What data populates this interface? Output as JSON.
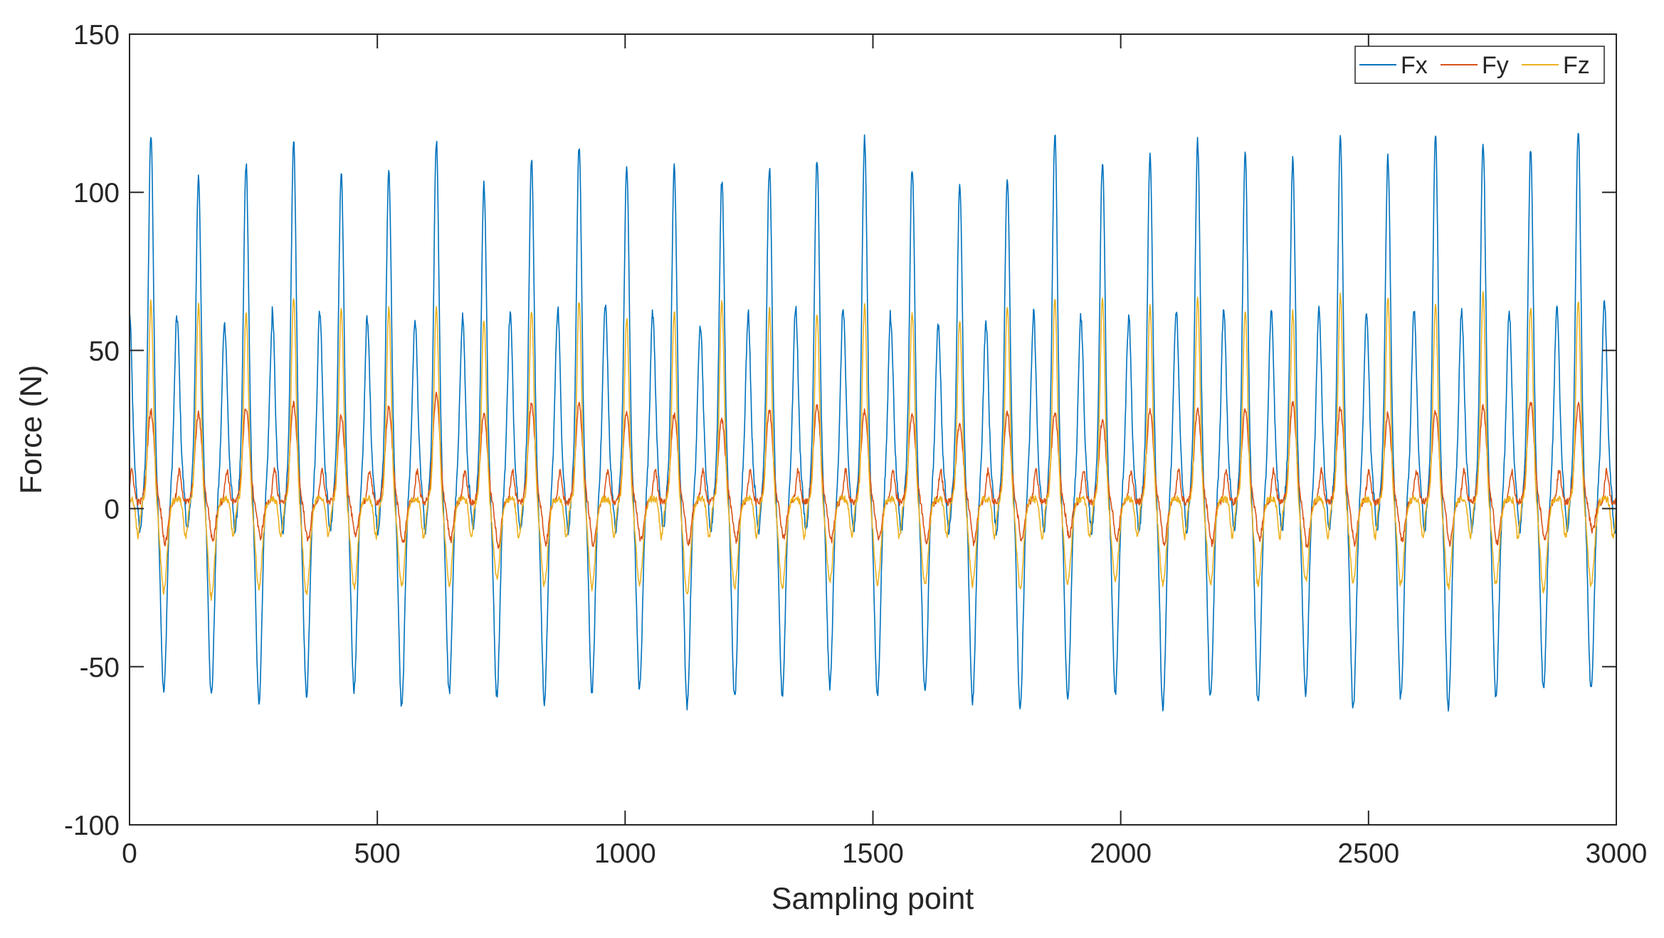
{
  "chart_data": {
    "type": "line",
    "title": "",
    "xlabel": "Sampling point",
    "ylabel": "Force (N)",
    "xlim": [
      0,
      3000
    ],
    "ylim": [
      -100,
      150
    ],
    "xticks": [
      0,
      500,
      1000,
      1500,
      2000,
      2500,
      3000
    ],
    "yticks": [
      -100,
      -50,
      0,
      50,
      100,
      150
    ],
    "xtick_labels": [
      "0",
      "500",
      "1000",
      "1500",
      "2000",
      "2500",
      "3000"
    ],
    "ytick_labels": [
      "-100",
      "-50",
      "0",
      "50",
      "100",
      "150"
    ],
    "grid": false,
    "legend_position": "top-right",
    "legend_orientation": "horizontal",
    "period_points": 96,
    "series": [
      {
        "name": "Fx",
        "color": "#0072BD",
        "cycle_maxima": [
          118,
          105,
          109,
          116,
          106,
          107,
          116,
          103,
          110,
          115,
          108,
          108,
          104,
          108,
          111,
          117,
          108,
          103,
          105,
          118,
          110,
          111,
          116,
          112,
          110,
          117,
          111,
          118,
          116,
          114,
          120
        ],
        "cycle_minima": [
          -58,
          -59,
          -61,
          -59,
          -57,
          -63,
          -58,
          -59,
          -61,
          -58,
          -57,
          -63,
          -60,
          -59,
          -56,
          -59,
          -58,
          -61,
          -64,
          -60,
          -58,
          -63,
          -60,
          -62,
          -59,
          -63,
          -60,
          -63,
          -60,
          -57,
          -57
        ],
        "secondary_peak": [
          62,
          60,
          58,
          63,
          62,
          58,
          60,
          61,
          62,
          64,
          65,
          60,
          58,
          63,
          64,
          63,
          60,
          58,
          59,
          63,
          59,
          62,
          63,
          62,
          62,
          63,
          62,
          63,
          62,
          62,
          65
        ]
      },
      {
        "name": "Fy",
        "color": "#D95319",
        "cycle_maxima": [
          31,
          30,
          32,
          33,
          29,
          32,
          36,
          30,
          33,
          33,
          30,
          30,
          28,
          31,
          33,
          31,
          30,
          27,
          30,
          30,
          28,
          31,
          31,
          31,
          33,
          32,
          30,
          31,
          32,
          34,
          33
        ],
        "cycle_minima": [
          -11,
          -10,
          -9,
          -10,
          -9,
          -11,
          -10,
          -12,
          -11,
          -12,
          -10,
          -11,
          -10,
          -9,
          -10,
          -10,
          -11,
          -11,
          -10,
          -9,
          -10,
          -11,
          -11,
          -10,
          -12,
          -11,
          -10,
          -11,
          -11,
          -10,
          -7
        ]
      },
      {
        "name": "Fz",
        "color": "#EDB120",
        "cycle_maxima": [
          65,
          64,
          62,
          67,
          63,
          63,
          64,
          60,
          63,
          66,
          60,
          62,
          66,
          63,
          62,
          64,
          62,
          60,
          64,
          66,
          67,
          64,
          67,
          63,
          62,
          68,
          67,
          65,
          68,
          64,
          66
        ],
        "cycle_minima": [
          -26,
          -28,
          -25,
          -27,
          -25,
          -24,
          -24,
          -22,
          -24,
          -25,
          -24,
          -27,
          -25,
          -25,
          -23,
          -24,
          -24,
          -24,
          -25,
          -24,
          -23,
          -24,
          -24,
          -24,
          -23,
          -23,
          -24,
          -25,
          -24,
          -26,
          -24
        ]
      }
    ]
  }
}
